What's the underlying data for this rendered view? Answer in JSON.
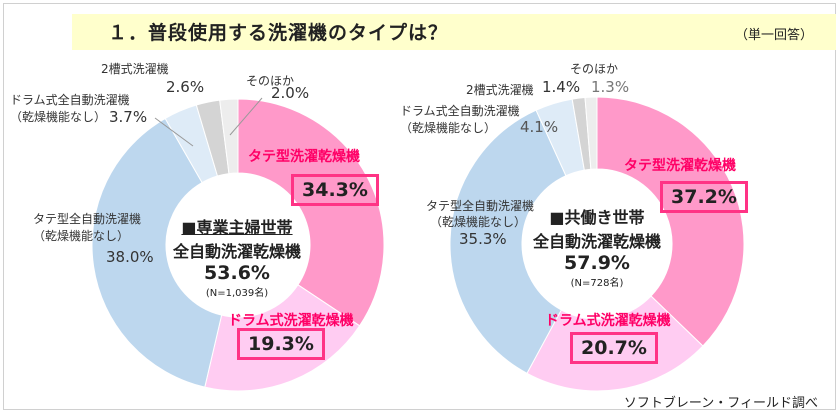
{
  "title": "１．普段使用する洗濯機のタイプは？",
  "question_type": "（単一回答）",
  "source": "ソフトブレーン・フィールド調べ",
  "colors": [
    "#ff99c9",
    "#ffccf2",
    "#bdd7ee",
    "#deebf7",
    "#d4d4d4",
    "#ededed"
  ],
  "chart_data": [
    {
      "type": "pie",
      "donut": true,
      "title": "■専業主婦世帯",
      "center_label": "全自動洗濯乾燥機",
      "center_value": "53.6%",
      "sample": "(N=1,039名)",
      "categories": [
        "タテ型洗濯乾燥機",
        "ドラム式洗濯乾燥機",
        "タテ型全自動洗濯機（乾燥機能なし）",
        "ドラム式全自動洗濯機（乾燥機能なし）",
        "2槽式洗濯機",
        "そのほか"
      ],
      "values": [
        34.3,
        19.3,
        38.0,
        3.7,
        2.6,
        2.0
      ],
      "labels": [
        "34.3%",
        "19.3%",
        "38.0%",
        "3.7%",
        "2.6%",
        "2.0%"
      ]
    },
    {
      "type": "pie",
      "donut": true,
      "title": "■共働き世帯",
      "center_label": "全自動洗濯乾燥機",
      "center_value": "57.9%",
      "sample": "(N=728名)",
      "categories": [
        "タテ型洗濯乾燥機",
        "ドラム式洗濯乾燥機",
        "タテ型全自動洗濯機（乾燥機能なし）",
        "ドラム式全自動洗濯機（乾燥機能なし）",
        "2槽式洗濯機",
        "そのほか"
      ],
      "values": [
        37.2,
        20.7,
        35.3,
        4.1,
        1.4,
        1.3
      ],
      "labels": [
        "37.2%",
        "20.7%",
        "35.3%",
        "4.1%",
        "1.4%",
        "1.3%"
      ]
    }
  ],
  "cat_lines": {
    "tate_nondry_1": "タテ型全自動洗濯機",
    "nondry_2": "（乾燥機能なし）",
    "drum_nondry_1": "ドラム式全自動洗濯機"
  }
}
